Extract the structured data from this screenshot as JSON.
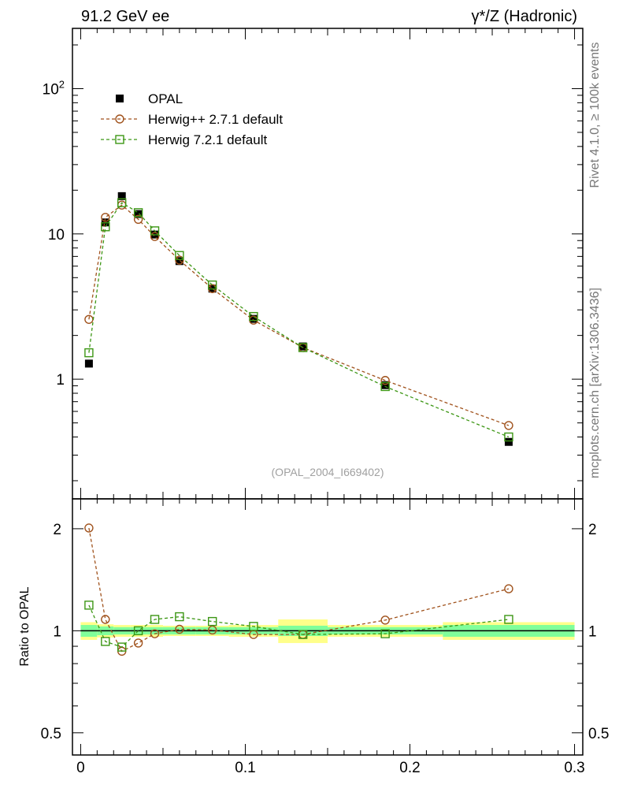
{
  "header": {
    "left": "91.2 GeV ee",
    "right": "γ*/Z (Hadronic)"
  },
  "side_labels": {
    "rivet": "Rivet 4.1.0, ≥ 100k events",
    "mcplots": "mcplots.cern.ch [arXiv:1306.3436]"
  },
  "analysis_tag": "(OPAL_2004_I669402)",
  "colors": {
    "data": "#000000",
    "herwigpp": "#a0521c",
    "herwig7": "#3c9614",
    "band_inner": "#80ff9a",
    "band_outer": "#ffff8a"
  },
  "chart_data": [
    {
      "type": "line",
      "panel": "main",
      "yscale": "log",
      "xlim": [
        -0.005,
        0.305
      ],
      "ylim": [
        0.15,
        260
      ],
      "y_ticks": [
        {
          "value": 1,
          "label": "1"
        },
        {
          "value": 10,
          "label": "10"
        },
        {
          "value": 100,
          "label": "10",
          "sup": "2"
        }
      ],
      "legend": {
        "placement": "top-left",
        "entries": [
          "OPAL",
          "Herwig++ 2.7.1 default",
          "Herwig 7.2.1 default"
        ]
      },
      "x": [
        0.005,
        0.015,
        0.025,
        0.035,
        0.045,
        0.06,
        0.08,
        0.105,
        0.135,
        0.185,
        0.26
      ],
      "series": [
        {
          "name": "OPAL",
          "marker": "filled-square",
          "values": [
            1.28,
            12.0,
            18.2,
            13.7,
            9.9,
            6.5,
            4.2,
            2.6,
            1.68,
            0.91,
            0.37
          ],
          "errors": [
            0.04,
            0.35,
            0.45,
            0.35,
            0.25,
            0.15,
            0.1,
            0.06,
            0.04,
            0.03,
            0.015
          ]
        },
        {
          "name": "Herwig++ 2.7.1 default",
          "marker": "open-circle",
          "values": [
            2.58,
            13.0,
            15.8,
            12.6,
            9.6,
            6.6,
            4.2,
            2.55,
            1.65,
            0.98,
            0.48
          ]
        },
        {
          "name": "Herwig 7.2.1 default",
          "marker": "open-square",
          "values": [
            1.52,
            11.2,
            16.4,
            14.0,
            10.5,
            7.1,
            4.45,
            2.7,
            1.65,
            0.89,
            0.4
          ]
        }
      ]
    },
    {
      "type": "line",
      "panel": "ratio",
      "yscale": "log",
      "ylabel": "Ratio to OPAL",
      "xlim": [
        -0.005,
        0.305
      ],
      "ylim": [
        0.43,
        2.45
      ],
      "y_ticks": [
        {
          "value": 0.5,
          "label": "0.5"
        },
        {
          "value": 1,
          "label": "1"
        },
        {
          "value": 2,
          "label": "2"
        }
      ],
      "x_ticks": [
        {
          "value": 0,
          "label": "0"
        },
        {
          "value": 0.1,
          "label": "0.1"
        },
        {
          "value": 0.2,
          "label": "0.2"
        },
        {
          "value": 0.3,
          "label": "0.3"
        }
      ],
      "x": [
        0.005,
        0.015,
        0.025,
        0.035,
        0.045,
        0.06,
        0.08,
        0.105,
        0.135,
        0.185,
        0.26
      ],
      "bins": [
        [
          0.0,
          0.01
        ],
        [
          0.01,
          0.02
        ],
        [
          0.02,
          0.03
        ],
        [
          0.03,
          0.04
        ],
        [
          0.04,
          0.05
        ],
        [
          0.05,
          0.07
        ],
        [
          0.07,
          0.09
        ],
        [
          0.09,
          0.12
        ],
        [
          0.12,
          0.15
        ],
        [
          0.15,
          0.22
        ],
        [
          0.22,
          0.3
        ]
      ],
      "band_inner": [
        0.04,
        0.03,
        0.025,
        0.025,
        0.025,
        0.025,
        0.025,
        0.025,
        0.035,
        0.025,
        0.04
      ],
      "band_outer": [
        0.06,
        0.045,
        0.04,
        0.04,
        0.04,
        0.035,
        0.035,
        0.04,
        0.08,
        0.04,
        0.06
      ],
      "series": [
        {
          "name": "Herwig++ 2.7.1 default",
          "marker": "open-circle",
          "values": [
            2.01,
            1.08,
            0.87,
            0.92,
            0.98,
            1.01,
            1.005,
            0.975,
            0.975,
            1.075,
            1.33
          ]
        },
        {
          "name": "Herwig 7.2.1 default",
          "marker": "open-square",
          "values": [
            1.19,
            0.93,
            0.895,
            1.0,
            1.08,
            1.1,
            1.065,
            1.03,
            0.975,
            0.98,
            1.08
          ]
        }
      ]
    }
  ]
}
